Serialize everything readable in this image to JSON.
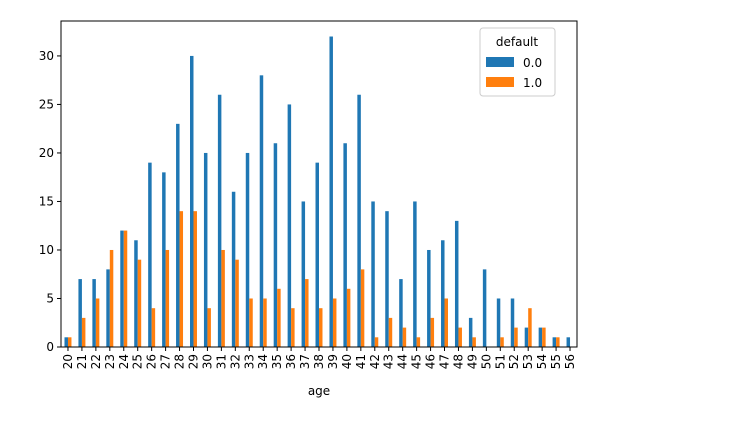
{
  "chart_data": {
    "type": "bar",
    "xlabel": "age",
    "ylabel": "",
    "ylim": [
      0,
      33.6
    ],
    "yticks": [
      0,
      5,
      10,
      15,
      20,
      25,
      30
    ],
    "grid": false,
    "legend_placement": "top-right",
    "legend_title": "default",
    "categories": [
      "20",
      "21",
      "22",
      "23",
      "24",
      "25",
      "26",
      "27",
      "28",
      "29",
      "30",
      "31",
      "32",
      "33",
      "34",
      "35",
      "36",
      "37",
      "38",
      "39",
      "40",
      "41",
      "42",
      "43",
      "44",
      "45",
      "46",
      "47",
      "48",
      "49",
      "50",
      "51",
      "52",
      "53",
      "54",
      "55",
      "56"
    ],
    "series": [
      {
        "name": "0.0",
        "color": "#1f77b4",
        "values": [
          1,
          7,
          7,
          8,
          12,
          11,
          19,
          18,
          23,
          30,
          20,
          26,
          16,
          20,
          28,
          21,
          25,
          15,
          19,
          32,
          21,
          26,
          15,
          14,
          7,
          15,
          10,
          11,
          13,
          3,
          8,
          5,
          5,
          2,
          2,
          1,
          1
        ]
      },
      {
        "name": "1.0",
        "color": "#ff7f0e",
        "values": [
          1,
          3,
          5,
          10,
          12,
          9,
          4,
          10,
          14,
          14,
          4,
          10,
          9,
          5,
          5,
          6,
          4,
          7,
          4,
          5,
          6,
          8,
          1,
          3,
          2,
          1,
          3,
          5,
          2,
          1,
          0,
          1,
          2,
          4,
          2,
          1,
          0
        ]
      }
    ]
  }
}
